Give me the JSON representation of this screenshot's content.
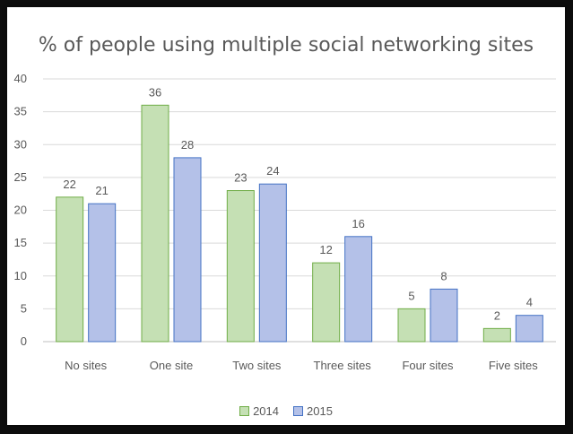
{
  "chart_data": {
    "type": "bar",
    "title": "% of people using multiple social networking sites",
    "categories": [
      "No sites",
      "One site",
      "Two sites",
      "Three sites",
      "Four sites",
      "Five sites"
    ],
    "series": [
      {
        "name": "2014",
        "values": [
          22,
          36,
          23,
          12,
          5,
          2
        ],
        "fill": "#c5e0b4",
        "stroke": "#70ad47"
      },
      {
        "name": "2015",
        "values": [
          21,
          28,
          24,
          16,
          8,
          4
        ],
        "fill": "#b4c1e8",
        "stroke": "#4472c4"
      }
    ],
    "ylim": [
      0,
      40
    ],
    "yticks": [
      "0",
      "5",
      "10",
      "15",
      "20",
      "25",
      "30",
      "35",
      "40"
    ],
    "grid": true,
    "legend": "bottom"
  }
}
